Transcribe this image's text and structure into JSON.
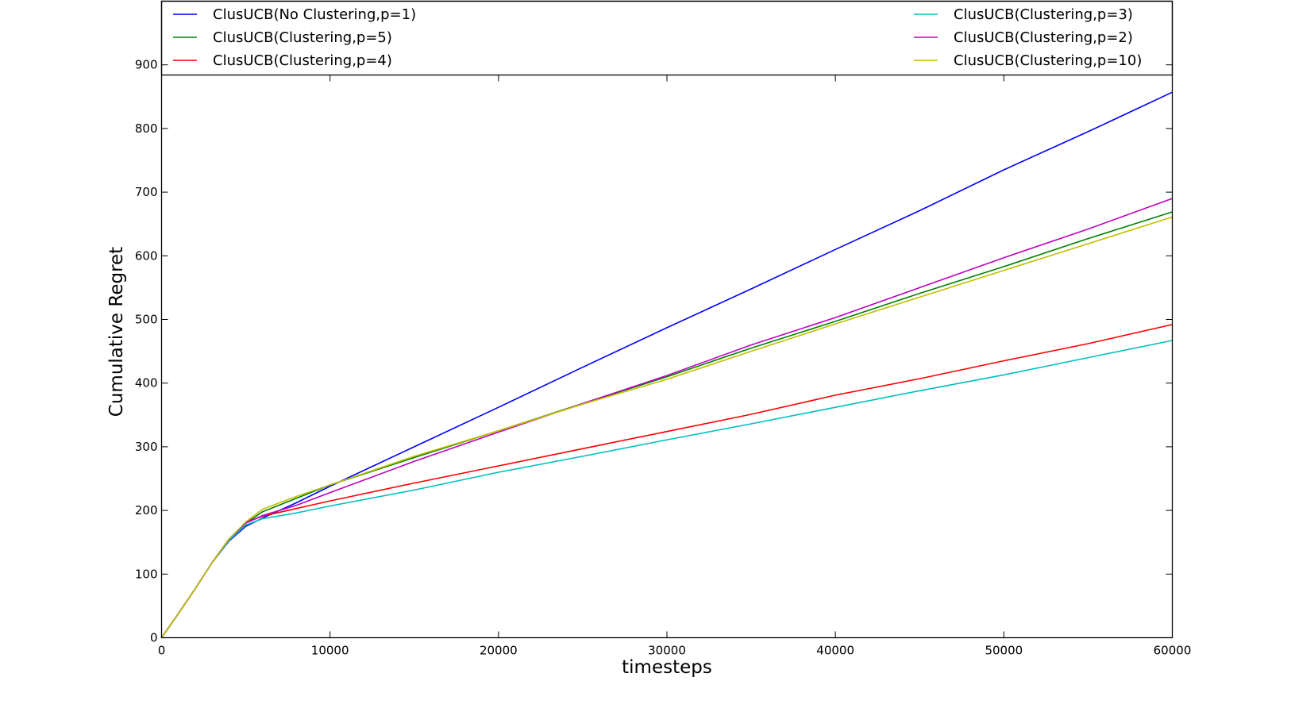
{
  "chart_data": {
    "type": "line",
    "title": "",
    "xlabel": "timesteps",
    "ylabel": "Cumulative Regret",
    "xlim": [
      0,
      60000
    ],
    "ylim": [
      0,
      1000
    ],
    "xticks": [
      0,
      10000,
      20000,
      30000,
      40000,
      50000,
      60000
    ],
    "yticks": [
      0,
      100,
      200,
      300,
      400,
      500,
      600,
      700,
      800,
      900
    ],
    "grid": false,
    "legend": "top, two columns, framed band",
    "series": [
      {
        "name": "ClusUCB(No Clustering,p=1)",
        "color": "#0000ff",
        "points": [
          [
            0,
            0
          ],
          [
            1000,
            38
          ],
          [
            2000,
            77
          ],
          [
            3000,
            118
          ],
          [
            4000,
            152
          ],
          [
            5000,
            175
          ],
          [
            6000,
            188
          ],
          [
            8000,
            212
          ],
          [
            10000,
            238
          ],
          [
            15000,
            300
          ],
          [
            20000,
            362
          ],
          [
            25000,
            425
          ],
          [
            30000,
            487
          ],
          [
            35000,
            548
          ],
          [
            40000,
            610
          ],
          [
            45000,
            671
          ],
          [
            50000,
            735
          ],
          [
            55000,
            795
          ],
          [
            60000,
            857
          ]
        ]
      },
      {
        "name": "ClusUCB(Clustering,p=5)",
        "color": "#008000",
        "points": [
          [
            0,
            0
          ],
          [
            1000,
            38
          ],
          [
            2000,
            77
          ],
          [
            3000,
            118
          ],
          [
            4000,
            155
          ],
          [
            5000,
            180
          ],
          [
            6000,
            198
          ],
          [
            8000,
            219
          ],
          [
            10000,
            240
          ],
          [
            15000,
            283
          ],
          [
            20000,
            325
          ],
          [
            25000,
            368
          ],
          [
            30000,
            410
          ],
          [
            35000,
            455
          ],
          [
            40000,
            497
          ],
          [
            45000,
            541
          ],
          [
            50000,
            583
          ],
          [
            55000,
            627
          ],
          [
            60000,
            669
          ]
        ]
      },
      {
        "name": "ClusUCB(Clustering,p=4)",
        "color": "#ff0000",
        "points": [
          [
            0,
            0
          ],
          [
            1000,
            38
          ],
          [
            2000,
            77
          ],
          [
            3000,
            118
          ],
          [
            4000,
            155
          ],
          [
            5000,
            181
          ],
          [
            6000,
            191
          ],
          [
            8000,
            203
          ],
          [
            10000,
            215
          ],
          [
            15000,
            243
          ],
          [
            20000,
            270
          ],
          [
            25000,
            297
          ],
          [
            30000,
            324
          ],
          [
            35000,
            351
          ],
          [
            40000,
            381
          ],
          [
            45000,
            407
          ],
          [
            50000,
            435
          ],
          [
            55000,
            462
          ],
          [
            60000,
            492
          ]
        ]
      },
      {
        "name": "ClusUCB(Clustering,p=3)",
        "color": "#00bfbf",
        "points": [
          [
            0,
            0
          ],
          [
            1000,
            38
          ],
          [
            2000,
            77
          ],
          [
            3000,
            118
          ],
          [
            4000,
            153
          ],
          [
            5000,
            177
          ],
          [
            6000,
            187
          ],
          [
            8000,
            196
          ],
          [
            10000,
            207
          ],
          [
            15000,
            232
          ],
          [
            20000,
            260
          ],
          [
            25000,
            285
          ],
          [
            30000,
            311
          ],
          [
            35000,
            336
          ],
          [
            40000,
            362
          ],
          [
            45000,
            388
          ],
          [
            50000,
            413
          ],
          [
            55000,
            440
          ],
          [
            60000,
            467
          ]
        ]
      },
      {
        "name": "ClusUCB(Clustering,p=2)",
        "color": "#bf00bf",
        "points": [
          [
            0,
            0
          ],
          [
            1000,
            38
          ],
          [
            2000,
            77
          ],
          [
            3000,
            118
          ],
          [
            4000,
            155
          ],
          [
            5000,
            180
          ],
          [
            6000,
            192
          ],
          [
            8000,
            208
          ],
          [
            10000,
            228
          ],
          [
            15000,
            277
          ],
          [
            20000,
            323
          ],
          [
            25000,
            368
          ],
          [
            30000,
            412
          ],
          [
            35000,
            460
          ],
          [
            40000,
            503
          ],
          [
            45000,
            550
          ],
          [
            50000,
            597
          ],
          [
            55000,
            642
          ],
          [
            60000,
            690
          ]
        ]
      },
      {
        "name": "ClusUCB(Clustering,p=10)",
        "color": "#bfbf00",
        "points": [
          [
            0,
            0
          ],
          [
            1000,
            38
          ],
          [
            2000,
            77
          ],
          [
            3000,
            118
          ],
          [
            4000,
            155
          ],
          [
            5000,
            182
          ],
          [
            6000,
            202
          ],
          [
            8000,
            222
          ],
          [
            10000,
            240
          ],
          [
            15000,
            285
          ],
          [
            20000,
            325
          ],
          [
            25000,
            367
          ],
          [
            30000,
            406
          ],
          [
            35000,
            450
          ],
          [
            40000,
            493
          ],
          [
            45000,
            535
          ],
          [
            50000,
            577
          ],
          [
            55000,
            619
          ],
          [
            60000,
            661
          ]
        ]
      }
    ]
  }
}
